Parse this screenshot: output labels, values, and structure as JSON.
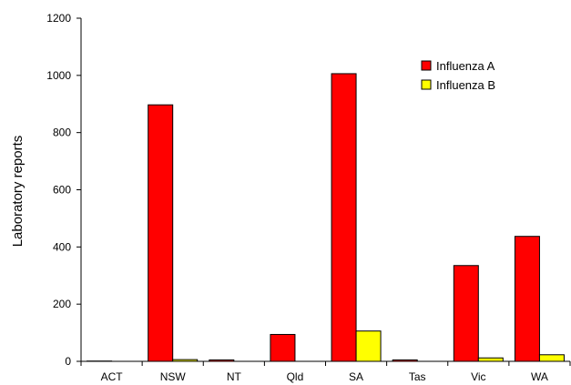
{
  "chart_data": {
    "type": "bar",
    "title": "",
    "xlabel": "",
    "ylabel": "Laboratory reports",
    "ylim": [
      0,
      1200
    ],
    "yticks": [
      0,
      200,
      400,
      600,
      800,
      1000,
      1200
    ],
    "ytick_labels": [
      "0",
      "200",
      "400",
      "600",
      "800",
      "1000",
      "1200"
    ],
    "grid": false,
    "legend_position": "top-right",
    "categories": [
      "ACT",
      "NSW",
      "NT",
      "Qld",
      "SA",
      "Tas",
      "Vic",
      "WA"
    ],
    "series": [
      {
        "name": "Influenza A",
        "color": "#ff0000",
        "values": [
          1,
          897,
          5,
          94,
          1006,
          5,
          335,
          437
        ]
      },
      {
        "name": "Influenza B",
        "color": "#ffff00",
        "values": [
          0,
          6,
          0,
          0,
          106,
          0,
          12,
          23
        ]
      }
    ]
  }
}
